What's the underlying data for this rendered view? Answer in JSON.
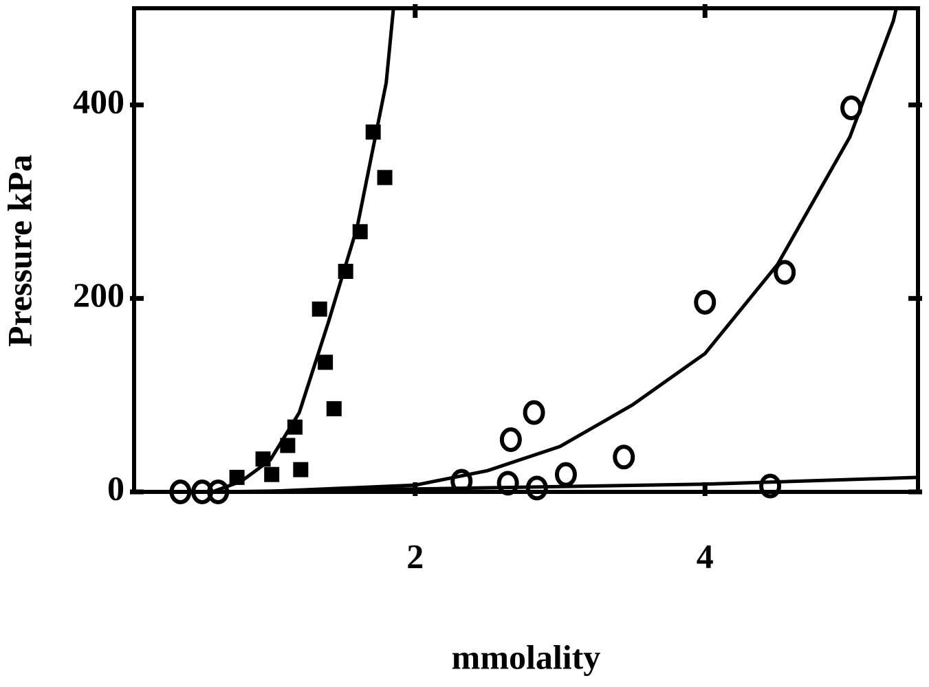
{
  "chart_data": {
    "type": "scatter",
    "x_label": "mmolality",
    "y_label": "Pressure kPa",
    "xlim": [
      0.06,
      5.47
    ],
    "ylim": [
      0,
      500
    ],
    "xticks": [
      2,
      4
    ],
    "yticks": [
      0,
      200,
      400
    ],
    "grid": false,
    "series": [
      {
        "kind": "scatter",
        "marker": "square",
        "color": "#000000",
        "x": [
          0.77,
          0.95,
          1.01,
          1.12,
          1.17,
          1.21,
          1.34,
          1.38,
          1.44,
          1.52,
          1.62,
          1.71,
          1.79
        ],
        "values": [
          15,
          34,
          18,
          48,
          67,
          23,
          189,
          134,
          86,
          228,
          269,
          372,
          325
        ]
      },
      {
        "kind": "scatter",
        "marker": "circle",
        "color": "#000000",
        "x": [
          0.38,
          0.53,
          0.64,
          2.32,
          2.64,
          2.66,
          2.82,
          2.84,
          3.04,
          3.44,
          4.0,
          4.45,
          4.55,
          5.01
        ],
        "values": [
          0,
          0,
          0,
          11,
          9,
          54,
          82,
          4,
          18,
          36,
          196,
          6,
          227,
          397
        ]
      },
      {
        "kind": "line",
        "color": "#000000",
        "x": [
          0.6,
          0.8,
          1.0,
          1.2,
          1.4,
          1.6,
          1.8,
          1.85
        ],
        "values": [
          0,
          11,
          33,
          82,
          175,
          274,
          423,
          500
        ]
      },
      {
        "kind": "line",
        "color": "#000000",
        "x": [
          0.9,
          2.0,
          2.5,
          3.0,
          3.5,
          4.0,
          4.5,
          5.0,
          5.3,
          5.32
        ],
        "values": [
          0,
          7,
          22,
          47,
          90,
          143,
          235,
          367,
          487,
          500
        ]
      },
      {
        "kind": "line",
        "color": "#000000",
        "x": [
          0.6,
          2.0,
          4.0,
          5.47
        ],
        "values": [
          0,
          3,
          8,
          15
        ]
      }
    ]
  }
}
